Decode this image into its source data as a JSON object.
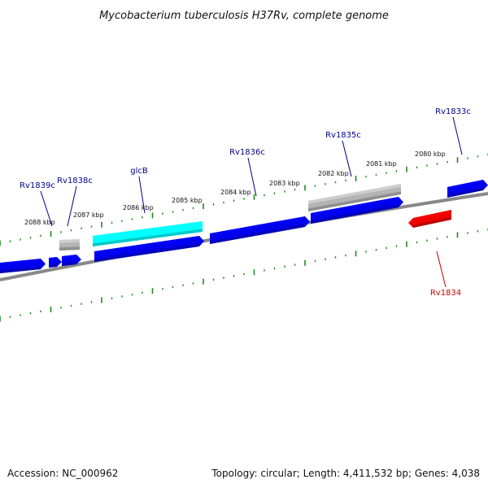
{
  "title": "Mycobacterium tuberculosis H37Rv, complete genome",
  "footer": {
    "accession": "Accession: NC_000962",
    "summary": "Topology: circular; Length: 4,411,532 bp; Genes: 4,038"
  },
  "colors": {
    "backbone": "#888888",
    "tick": "#1f8a1f",
    "label_blue": "#00008b",
    "label_red": "#cc0000",
    "gene_blue": "#0000ee",
    "gene_gray": "#b4b4b4",
    "gene_cyan": "#00ffff",
    "gene_red": "#ee0000"
  },
  "kbp_labels": [
    "2088 kbp",
    "2087 kbp",
    "2086 kbp",
    "2085 kbp",
    "2084 kbp",
    "2083 kbp",
    "2082 kbp",
    "2081 kbp",
    "2080 kbp"
  ],
  "gene_labels": [
    {
      "name": "Rv1839c",
      "color": "label_blue"
    },
    {
      "name": "Rv1838c",
      "color": "label_blue"
    },
    {
      "name": "glcB",
      "color": "label_blue"
    },
    {
      "name": "Rv1836c",
      "color": "label_blue"
    },
    {
      "name": "Rv1835c",
      "color": "label_blue"
    },
    {
      "name": "Rv1833c",
      "color": "label_blue"
    },
    {
      "name": "Rv1834",
      "color": "label_red"
    }
  ]
}
